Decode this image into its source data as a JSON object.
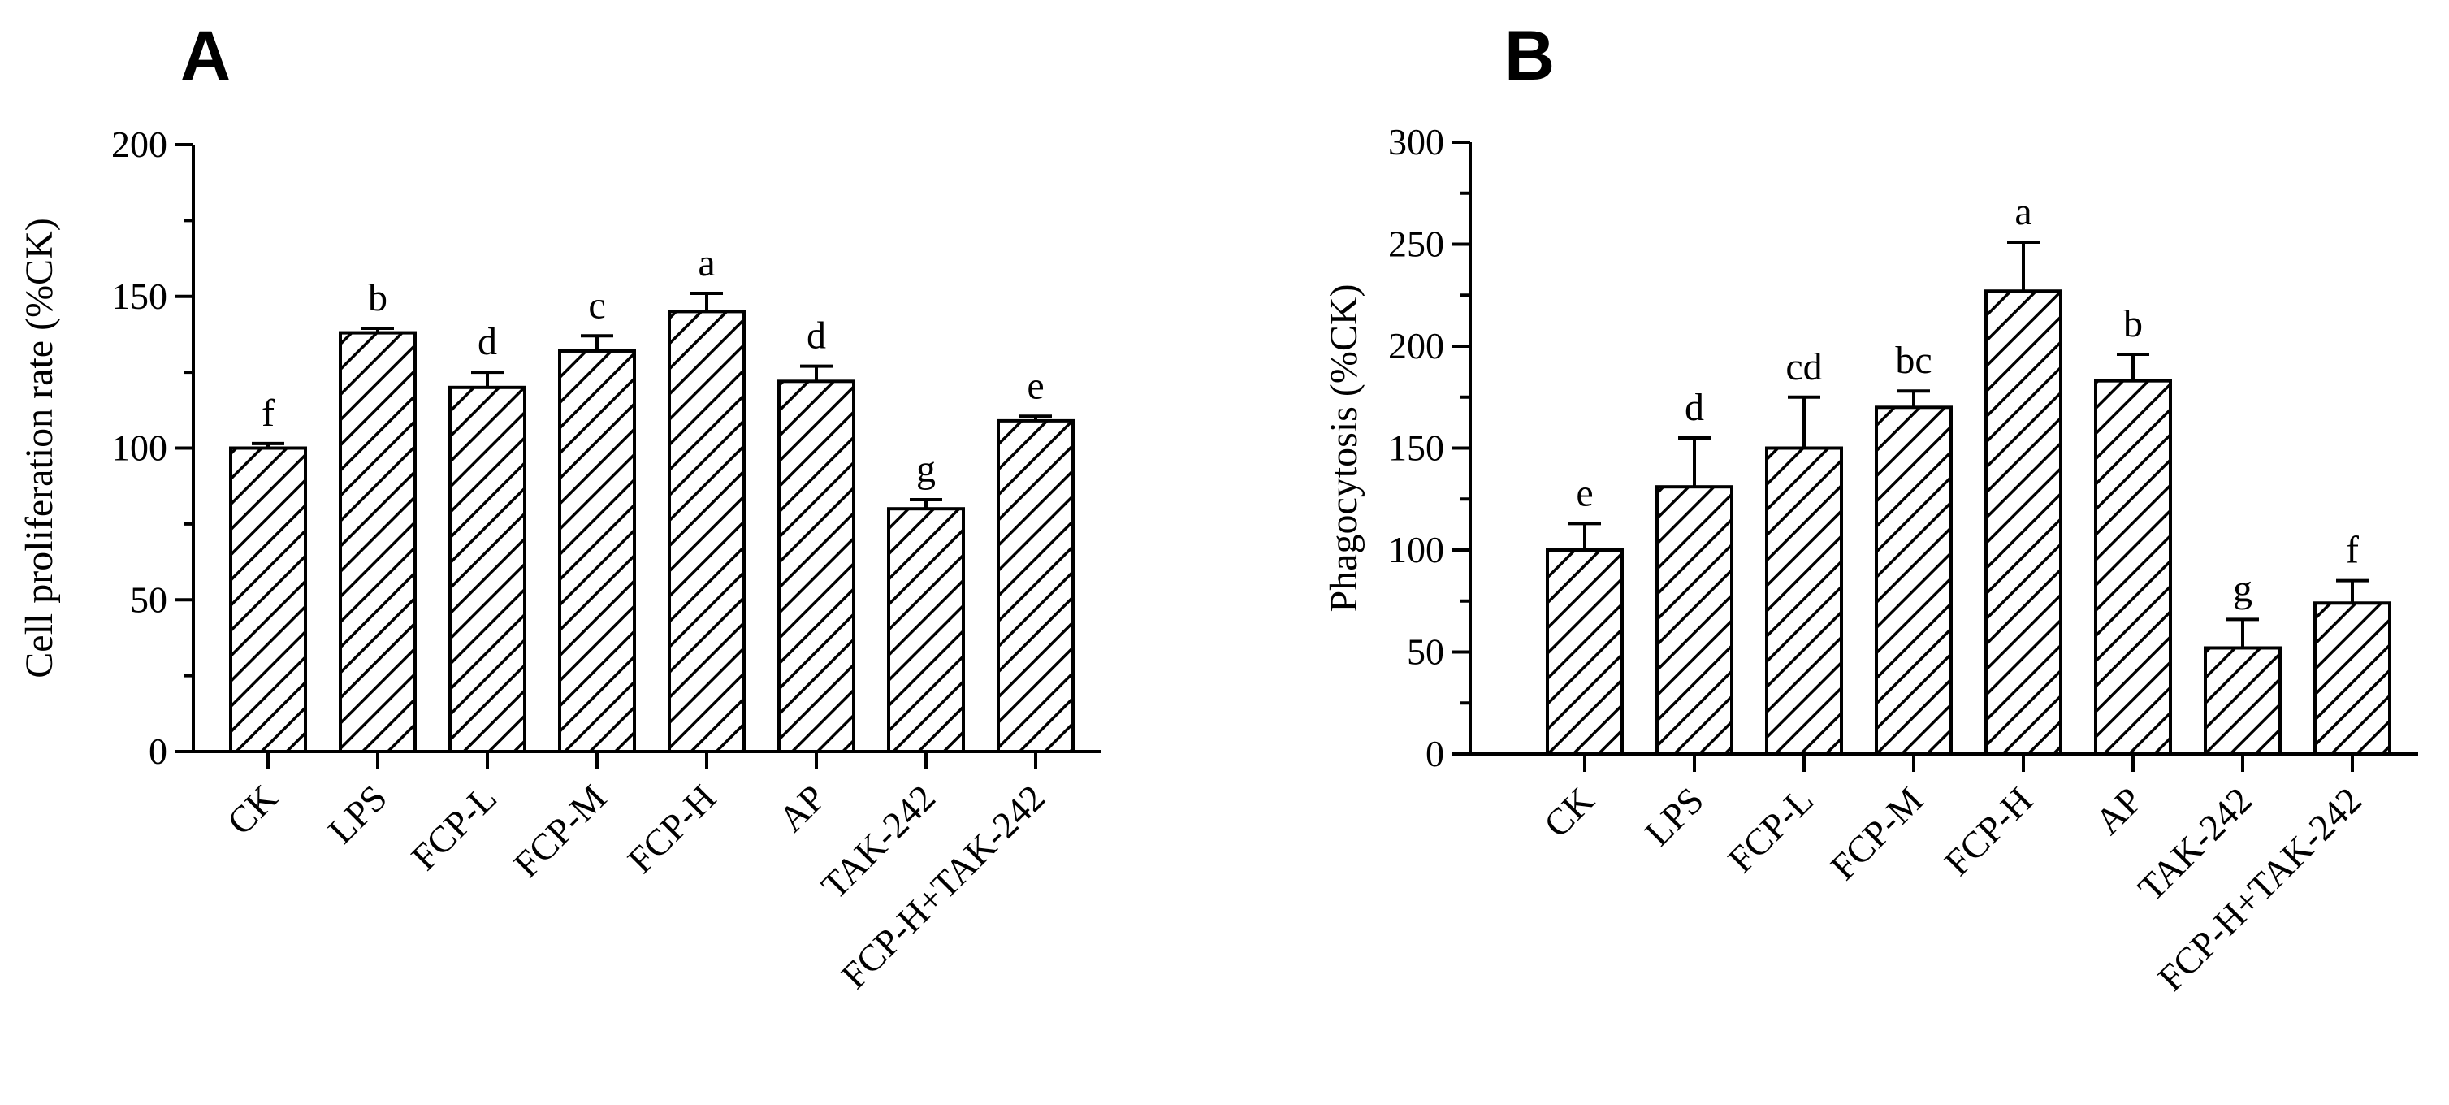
{
  "chart_data": [
    {
      "type": "bar",
      "panel_label": "A",
      "title": "",
      "xlabel": "",
      "ylabel": "Cell proliferation rate (%CK)",
      "ylim": [
        0,
        200
      ],
      "yticks": [
        0,
        50,
        100,
        150,
        200
      ],
      "grid": false,
      "pattern": "diagonal-hatch",
      "categories": [
        "CK",
        "LPS",
        "FCP-L",
        "FCP-M",
        "FCP-H",
        "AP",
        "TAK-242",
        "FCP-H+TAK-242"
      ],
      "values": [
        100,
        138,
        120,
        132,
        145,
        122,
        80,
        109
      ],
      "errors": [
        1.5,
        1.5,
        5,
        5,
        6,
        5,
        3,
        1.5
      ],
      "significance": [
        "f",
        "b",
        "d",
        "c",
        "a",
        "d",
        "g",
        "e"
      ]
    },
    {
      "type": "bar",
      "panel_label": "B",
      "title": "",
      "xlabel": "",
      "ylabel": "Phagocytosis (%CK)",
      "ylim": [
        0,
        300
      ],
      "yticks": [
        0,
        50,
        100,
        150,
        200,
        250,
        300
      ],
      "grid": false,
      "pattern": "diagonal-hatch",
      "categories": [
        "CK",
        "LPS",
        "FCP-L",
        "FCP-M",
        "FCP-H",
        "AP",
        "TAK-242",
        "FCP-H+TAK-242"
      ],
      "values": [
        100,
        131,
        150,
        170,
        227,
        183,
        52,
        74
      ],
      "errors": [
        13,
        24,
        25,
        8,
        24,
        13,
        14,
        11
      ],
      "significance": [
        "e",
        "d",
        "cd",
        "bc",
        "a",
        "b",
        "g",
        "f"
      ]
    }
  ]
}
